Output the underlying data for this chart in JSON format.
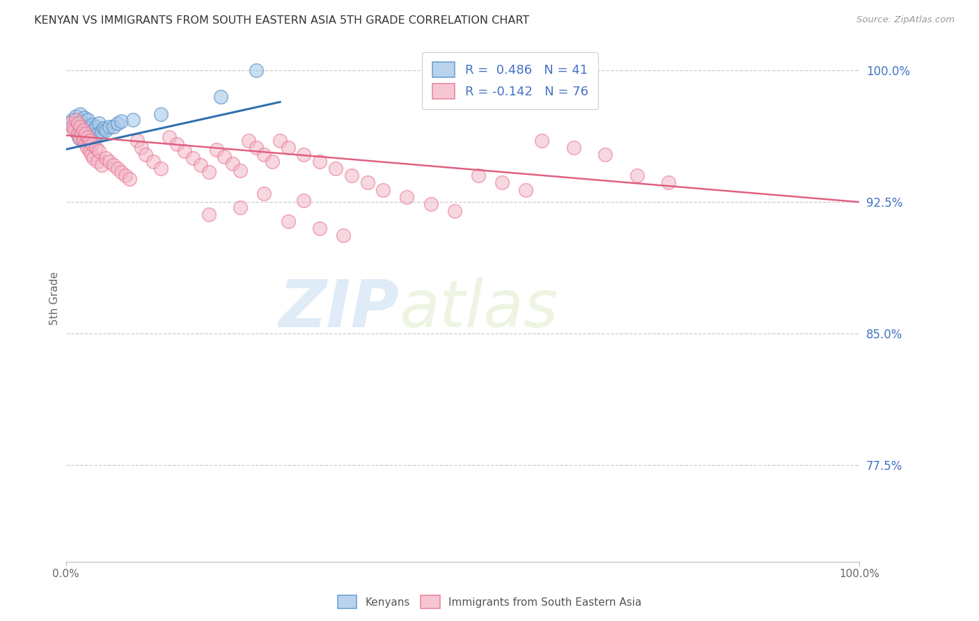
{
  "title": "KENYAN VS IMMIGRANTS FROM SOUTH EASTERN ASIA 5TH GRADE CORRELATION CHART",
  "source": "Source: ZipAtlas.com",
  "ylabel": "5th Grade",
  "xlim": [
    0.0,
    1.0
  ],
  "ylim": [
    0.72,
    1.02
  ],
  "yticks": [
    0.775,
    0.85,
    0.925,
    1.0
  ],
  "ytick_labels": [
    "77.5%",
    "85.0%",
    "92.5%",
    "100.0%"
  ],
  "legend_r1": "R =  0.486   N = 41",
  "legend_r2": "R = -0.142   N = 76",
  "blue_color": "#a8c8e8",
  "pink_color": "#f4b8c8",
  "blue_edge_color": "#5590c8",
  "pink_edge_color": "#e87090",
  "blue_line_color": "#3070b0",
  "pink_line_color": "#e06080",
  "tick_color": "#4472c4",
  "watermark_zip": "ZIP",
  "watermark_atlas": "atlas",
  "blue_scatter_x": [
    0.005,
    0.008,
    0.01,
    0.012,
    0.013,
    0.015,
    0.015,
    0.017,
    0.018,
    0.018,
    0.02,
    0.02,
    0.022,
    0.022,
    0.023,
    0.025,
    0.025,
    0.027,
    0.028,
    0.028,
    0.03,
    0.03,
    0.032,
    0.033,
    0.035,
    0.035,
    0.037,
    0.038,
    0.04,
    0.042,
    0.045,
    0.048,
    0.05,
    0.055,
    0.06,
    0.065,
    0.07,
    0.085,
    0.12,
    0.195,
    0.24
  ],
  "blue_scatter_y": [
    0.97,
    0.972,
    0.968,
    0.966,
    0.974,
    0.963,
    0.969,
    0.961,
    0.967,
    0.975,
    0.964,
    0.971,
    0.96,
    0.967,
    0.973,
    0.962,
    0.968,
    0.96,
    0.965,
    0.972,
    0.961,
    0.967,
    0.963,
    0.969,
    0.96,
    0.966,
    0.962,
    0.968,
    0.964,
    0.97,
    0.965,
    0.967,
    0.966,
    0.968,
    0.968,
    0.97,
    0.971,
    0.972,
    0.975,
    0.985,
    1.0
  ],
  "pink_scatter_x": [
    0.005,
    0.008,
    0.01,
    0.013,
    0.015,
    0.015,
    0.017,
    0.018,
    0.02,
    0.022,
    0.022,
    0.025,
    0.025,
    0.027,
    0.028,
    0.03,
    0.03,
    0.032,
    0.033,
    0.035,
    0.038,
    0.04,
    0.042,
    0.045,
    0.05,
    0.055,
    0.06,
    0.065,
    0.07,
    0.075,
    0.08,
    0.09,
    0.095,
    0.1,
    0.11,
    0.12,
    0.13,
    0.14,
    0.15,
    0.16,
    0.17,
    0.18,
    0.19,
    0.2,
    0.21,
    0.22,
    0.23,
    0.24,
    0.25,
    0.26,
    0.27,
    0.28,
    0.3,
    0.32,
    0.34,
    0.36,
    0.38,
    0.4,
    0.43,
    0.46,
    0.49,
    0.52,
    0.55,
    0.58,
    0.25,
    0.3,
    0.22,
    0.18,
    0.28,
    0.32,
    0.35,
    0.6,
    0.64,
    0.68,
    0.72,
    0.76
  ],
  "pink_scatter_y": [
    0.97,
    0.968,
    0.966,
    0.972,
    0.964,
    0.97,
    0.962,
    0.968,
    0.964,
    0.96,
    0.966,
    0.958,
    0.964,
    0.956,
    0.962,
    0.954,
    0.96,
    0.952,
    0.958,
    0.95,
    0.956,
    0.948,
    0.954,
    0.946,
    0.95,
    0.948,
    0.946,
    0.944,
    0.942,
    0.94,
    0.938,
    0.96,
    0.956,
    0.952,
    0.948,
    0.944,
    0.962,
    0.958,
    0.954,
    0.95,
    0.946,
    0.942,
    0.955,
    0.951,
    0.947,
    0.943,
    0.96,
    0.956,
    0.952,
    0.948,
    0.96,
    0.956,
    0.952,
    0.948,
    0.944,
    0.94,
    0.936,
    0.932,
    0.928,
    0.924,
    0.92,
    0.94,
    0.936,
    0.932,
    0.93,
    0.926,
    0.922,
    0.918,
    0.914,
    0.91,
    0.906,
    0.96,
    0.956,
    0.952,
    0.94,
    0.936
  ],
  "blue_trend_x": [
    0.0,
    0.27
  ],
  "blue_trend_y": [
    0.955,
    0.982
  ],
  "pink_trend_x": [
    0.0,
    1.0
  ],
  "pink_trend_y": [
    0.963,
    0.925
  ]
}
